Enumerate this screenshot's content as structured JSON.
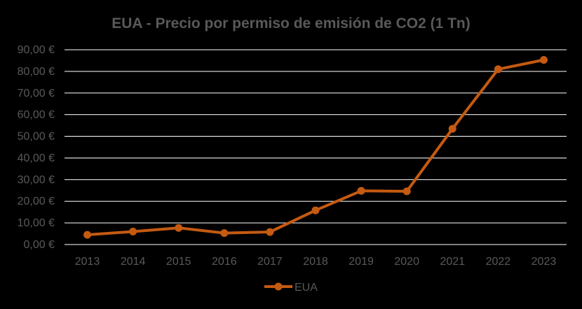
{
  "chart_data": {
    "type": "line",
    "title": "EUA - Precio por permiso de emisión de CO2 (1 Tn)",
    "xlabel": "",
    "ylabel": "",
    "categories": [
      "2013",
      "2014",
      "2015",
      "2016",
      "2017",
      "2018",
      "2019",
      "2020",
      "2021",
      "2022",
      "2023"
    ],
    "series": [
      {
        "name": "EUA",
        "values": [
          4.5,
          6.0,
          7.7,
          5.3,
          5.8,
          15.8,
          24.8,
          24.6,
          53.5,
          81.0,
          85.3
        ],
        "color": "#C55A11"
      }
    ],
    "ylim": [
      0,
      90
    ],
    "yticks": [
      0,
      10,
      20,
      30,
      40,
      50,
      60,
      70,
      80,
      90
    ],
    "ytick_labels": [
      "0,00 €",
      "10,00 €",
      "20,00 €",
      "30,00 €",
      "40,00 €",
      "50,00 €",
      "60,00 €",
      "70,00 €",
      "80,00 €",
      "90,00 €"
    ],
    "grid": true,
    "legend_position": "bottom-center",
    "colors": {
      "background": "#000000",
      "gridline": "#FFFFFF",
      "title_text": "#595959",
      "tick_text": "#595959"
    }
  }
}
